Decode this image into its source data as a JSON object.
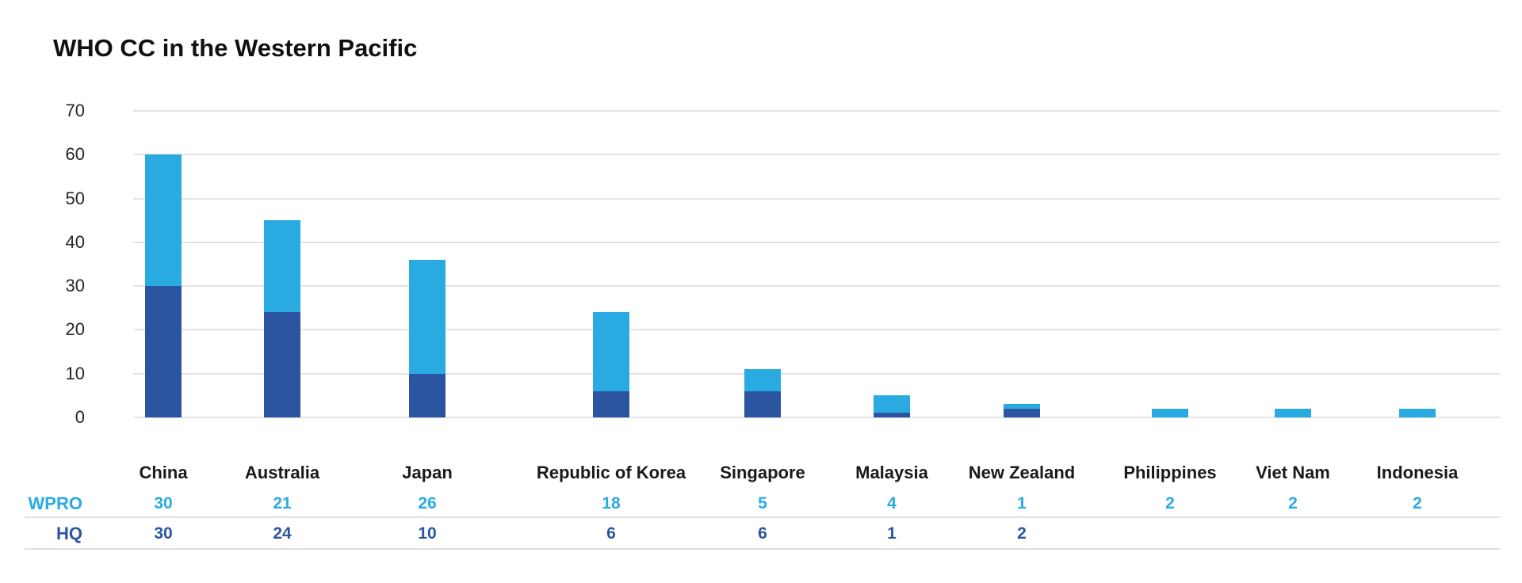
{
  "title": "WHO CC in the Western Pacific",
  "colors": {
    "wpro_blue": "#29ABE2",
    "hq_blue": "#2B55A1",
    "text_dark": "#1A1A1A"
  },
  "chart_data": {
    "type": "bar",
    "stacked": true,
    "orientation": "vertical",
    "title": "WHO CC in the Western Pacific",
    "categories": [
      "China",
      "Australia",
      "Japan",
      "Republic of Korea",
      "Singapore",
      "Malaysia",
      "New Zealand",
      "Philippines",
      "Viet Nam",
      "Indonesia"
    ],
    "series": [
      {
        "name": "WPRO",
        "color": "#29ABE2",
        "stack_position": "top",
        "values": [
          30,
          21,
          26,
          18,
          5,
          4,
          1,
          2,
          2,
          2
        ]
      },
      {
        "name": "HQ",
        "color": "#2B55A1",
        "stack_position": "bottom",
        "values": [
          30,
          24,
          10,
          6,
          6,
          1,
          2,
          null,
          null,
          null
        ]
      }
    ],
    "totals": [
      60,
      45,
      36,
      24,
      11,
      5,
      3,
      2,
      2,
      2
    ],
    "xlabel": "",
    "ylabel": "",
    "ylim": [
      0,
      70
    ],
    "yticks": [
      0,
      10,
      20,
      30,
      40,
      50,
      60,
      70
    ],
    "grid": true,
    "legend_position": "data-table-below-categories"
  }
}
